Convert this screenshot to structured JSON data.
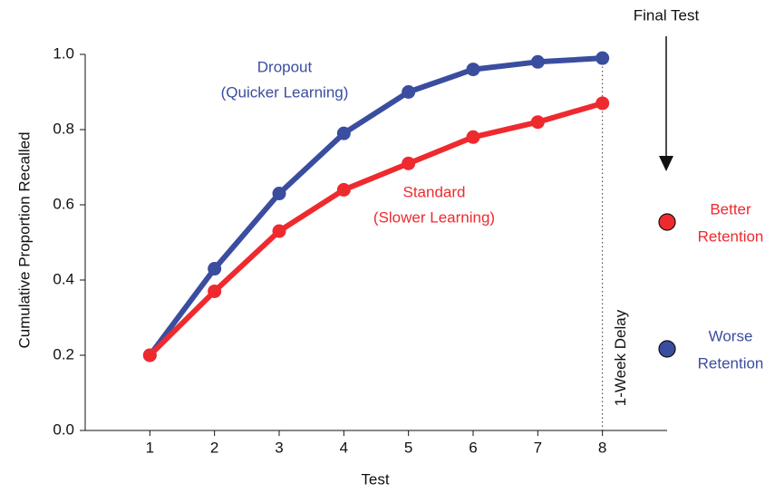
{
  "chart_data": {
    "type": "line",
    "x_label": "Test",
    "y_label": "Cumulative Proportion Recalled",
    "x": [
      1,
      2,
      3,
      4,
      5,
      6,
      7,
      8
    ],
    "xlim": [
      0,
      9
    ],
    "xticks": [
      1,
      2,
      3,
      4,
      5,
      6,
      7,
      8
    ],
    "ylim": [
      0,
      1
    ],
    "yticks": [
      {
        "value": 0,
        "label": "0.0"
      },
      {
        "value": 0.2,
        "label": "0.2"
      },
      {
        "value": 0.4,
        "label": "0.4"
      },
      {
        "value": 0.6,
        "label": "0.6"
      },
      {
        "value": 0.8,
        "label": "0.8"
      },
      {
        "value": 1,
        "label": "1.0"
      }
    ],
    "series": [
      {
        "name": "Dropout",
        "description": "(Quicker Learning)",
        "color": "#3a4d9f",
        "values": [
          0.2,
          0.43,
          0.63,
          0.79,
          0.9,
          0.96,
          0.98,
          0.99
        ]
      },
      {
        "name": "Standard",
        "description": "(Slower Learning)",
        "color": "#ee2a2f",
        "values": [
          0.2,
          0.37,
          0.53,
          0.64,
          0.71,
          0.78,
          0.82,
          0.87
        ]
      }
    ],
    "delay": {
      "x": 8,
      "label": "1-Week Delay"
    },
    "final_test": "Final Test",
    "retention": [
      {
        "lines": [
          "Better",
          "Retention"
        ],
        "color": "#ee2a2f"
      },
      {
        "lines": [
          "Worse",
          "Retention"
        ],
        "color": "#3a4d9f"
      }
    ]
  }
}
